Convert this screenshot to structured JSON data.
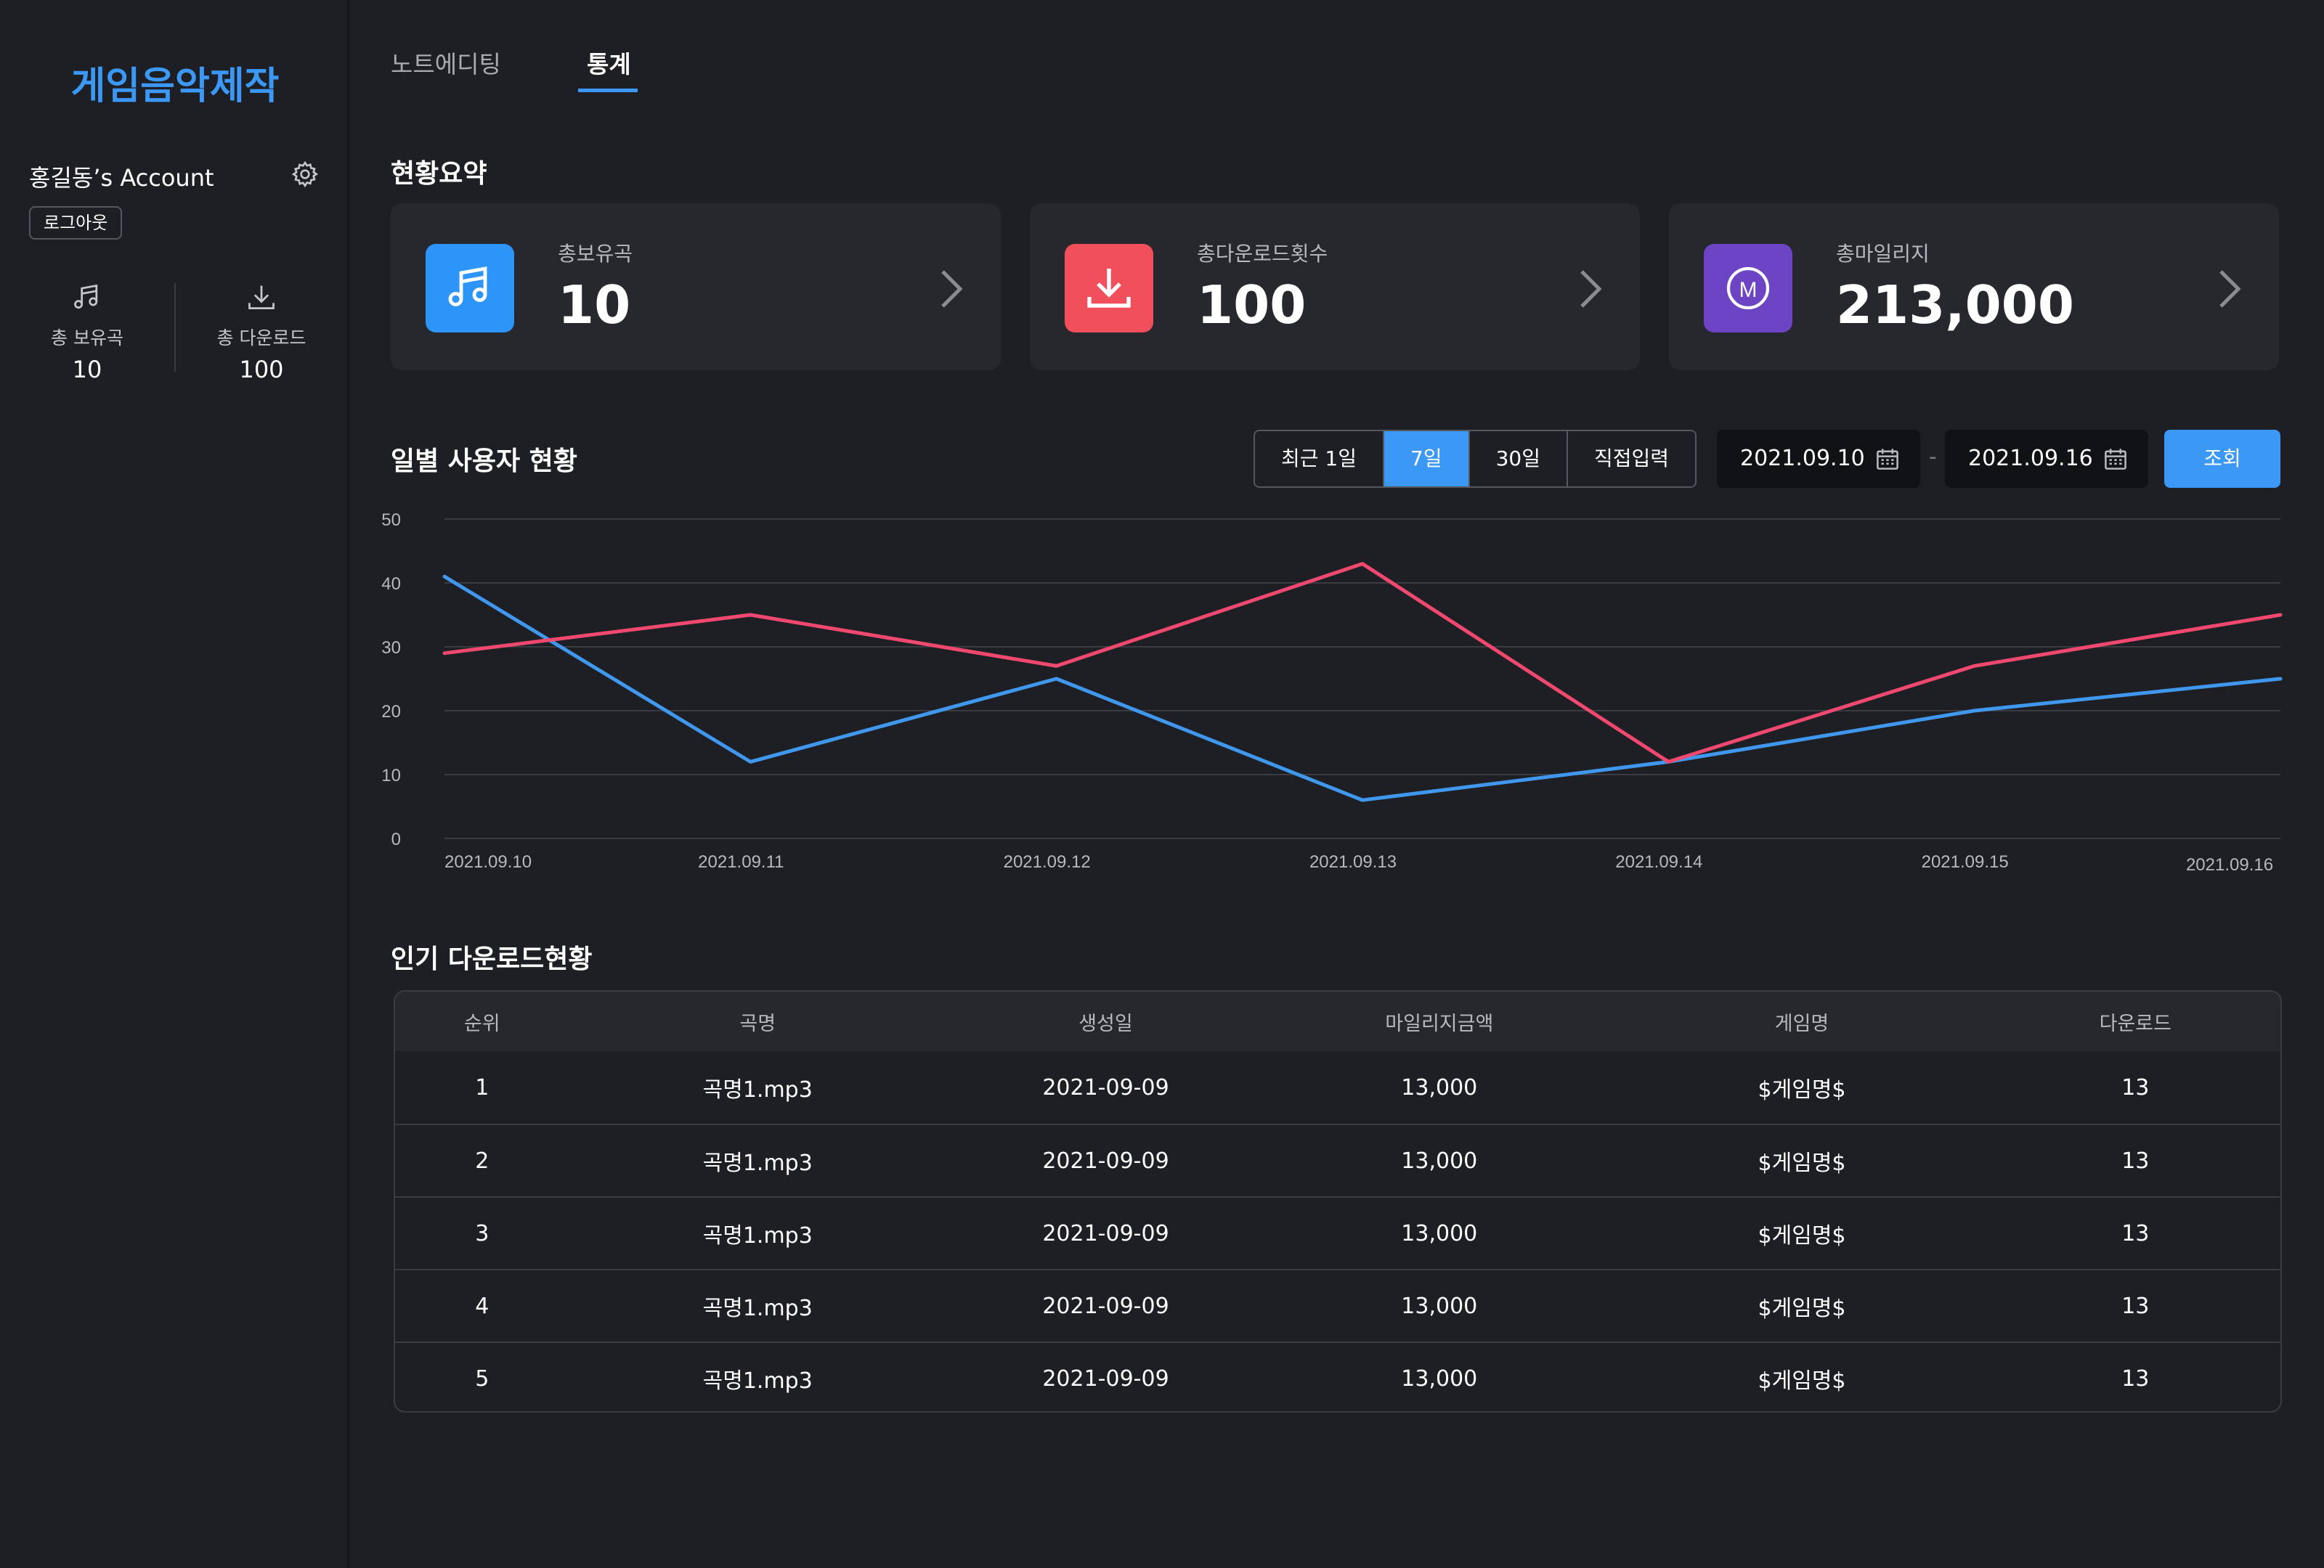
{
  "sidebar": {
    "logo": "게임음악제작",
    "account_name": "홍길동’s Account",
    "logout_label": "로그아웃",
    "stats": [
      {
        "icon": "music-note-icon",
        "label": "총 보유곡",
        "value": "10"
      },
      {
        "icon": "download-icon",
        "label": "총 다운로드",
        "value": "100"
      }
    ]
  },
  "tabs": [
    {
      "label": "노트에디팅",
      "active": false
    },
    {
      "label": "통계",
      "active": true
    }
  ],
  "summary": {
    "title": "현황요약",
    "cards": [
      {
        "icon": "music-note-icon",
        "color": "#2d95f7",
        "label": "총보유곡",
        "value": "10"
      },
      {
        "icon": "download-icon",
        "color": "#f24f5c",
        "label": "총다운로드횟수",
        "value": "100"
      },
      {
        "icon": "mileage-icon",
        "color": "#6c44c4",
        "label": "총마일리지",
        "value": "213,000"
      }
    ]
  },
  "daily": {
    "title": "일별 사용자 현황",
    "ranges": [
      "최근 1일",
      "7일",
      "30일",
      "직접입력"
    ],
    "active_range": "7일",
    "date_from": "2021.09.10",
    "date_to": "2021.09.16",
    "date_separator": "-",
    "query_label": "조회"
  },
  "chart_data": {
    "type": "line",
    "x": [
      "2021.09.10",
      "2021.09.11",
      "2021.09.12",
      "2021.09.13",
      "2021.09.14",
      "2021.09.15",
      "2021.09.16"
    ],
    "ylim": [
      0,
      50
    ],
    "yticks": [
      0,
      10,
      20,
      30,
      40,
      50
    ],
    "grid": true,
    "series": [
      {
        "color": "#3f97ee",
        "values": [
          41,
          12,
          25,
          6,
          12,
          20,
          25
        ]
      },
      {
        "color": "#f0486f",
        "values": [
          29,
          35,
          27,
          43,
          12,
          27,
          35
        ]
      }
    ]
  },
  "popular": {
    "title": "인기 다운로드현황",
    "columns": [
      "순위",
      "곡명",
      "생성일",
      "마일리지금액",
      "게임명",
      "다운로드"
    ],
    "rows": [
      [
        "1",
        "곡명1.mp3",
        "2021-09-09",
        "13,000",
        "$게임명$",
        "13"
      ],
      [
        "2",
        "곡명1.mp3",
        "2021-09-09",
        "13,000",
        "$게임명$",
        "13"
      ],
      [
        "3",
        "곡명1.mp3",
        "2021-09-09",
        "13,000",
        "$게임명$",
        "13"
      ],
      [
        "4",
        "곡명1.mp3",
        "2021-09-09",
        "13,000",
        "$게임명$",
        "13"
      ],
      [
        "5",
        "곡명1.mp3",
        "2021-09-09",
        "13,000",
        "$게임명$",
        "13"
      ]
    ]
  }
}
